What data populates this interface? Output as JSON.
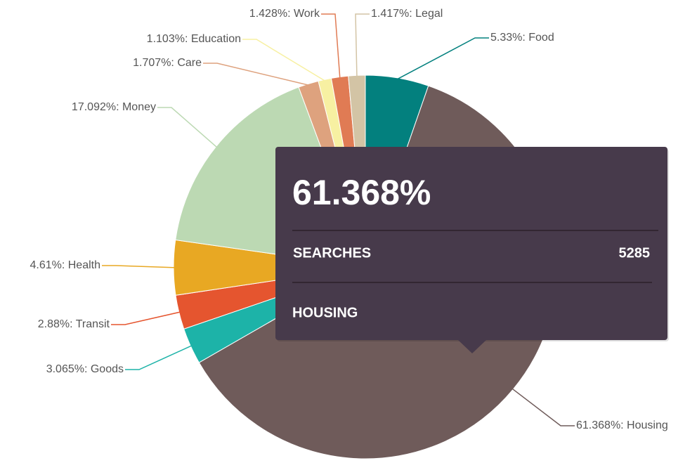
{
  "chart_data": {
    "type": "pie",
    "categories": [
      "Food",
      "Housing",
      "Goods",
      "Transit",
      "Health",
      "Money",
      "Care",
      "Education",
      "Work",
      "Legal"
    ],
    "values": [
      5.33,
      61.368,
      3.065,
      2.88,
      4.61,
      17.092,
      1.707,
      1.103,
      1.428,
      1.417
    ],
    "value_labels": [
      "5.33%: Food",
      "61.368%: Housing",
      "3.065%: Goods",
      "2.88%: Transit",
      "4.61%: Health",
      "17.092%: Money",
      "1.707%: Care",
      "1.103%: Education",
      "1.428%: Work",
      "1.417%: Legal"
    ],
    "colors": [
      "#03807e",
      "#6f5b5a",
      "#1db3a8",
      "#e5552f",
      "#e8a823",
      "#bcd9b3",
      "#dea27e",
      "#f7f0a2",
      "#e07b54",
      "#d3c4a5"
    ],
    "tooltip": {
      "value_label": "61.368%",
      "field": "SEARCHES",
      "count": 5285,
      "category": "HOUSING"
    }
  }
}
